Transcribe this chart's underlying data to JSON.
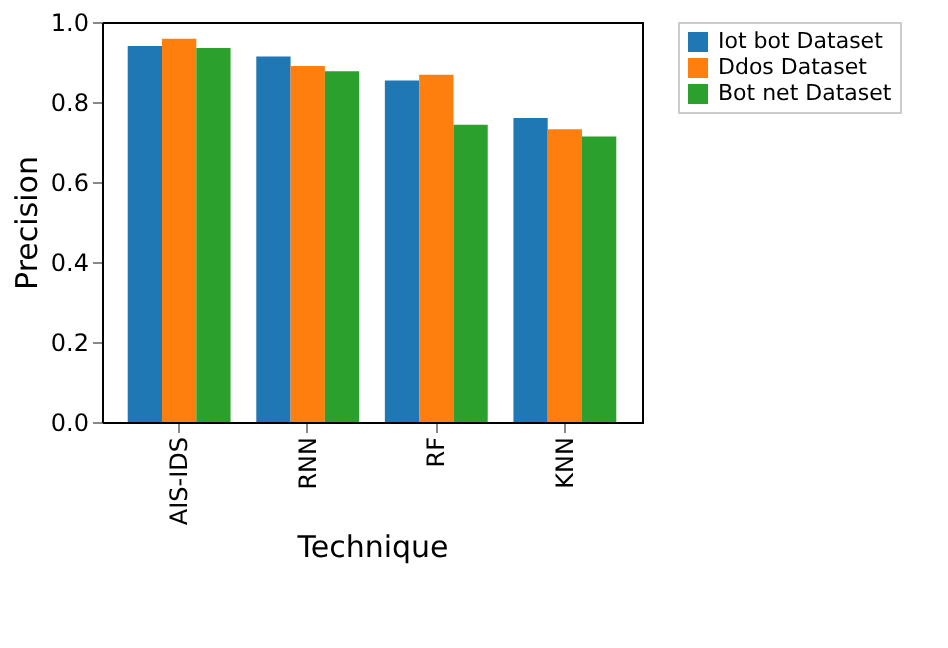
{
  "chart_data": {
    "type": "bar",
    "xlabel": "Technique",
    "ylabel": "Precision",
    "categories": [
      "AIS-IDS",
      "RNN",
      "RF",
      "KNN"
    ],
    "series": [
      {
        "name": "Iot bot Dataset",
        "color": "#1f77b4",
        "values": [
          0.94,
          0.914,
          0.854,
          0.76
        ]
      },
      {
        "name": "Ddos Dataset",
        "color": "#ff7f0e",
        "values": [
          0.958,
          0.89,
          0.868,
          0.732
        ]
      },
      {
        "name": "Bot net Dataset",
        "color": "#2ca02c",
        "values": [
          0.935,
          0.877,
          0.743,
          0.714
        ]
      }
    ],
    "ylim": [
      0,
      1
    ],
    "yticks": [
      {
        "value": 0,
        "label": "0.0"
      },
      0.2,
      0.4,
      0.6,
      0.8,
      {
        "value": 1,
        "label": "1.0"
      }
    ],
    "grid": false,
    "legend": "right"
  }
}
